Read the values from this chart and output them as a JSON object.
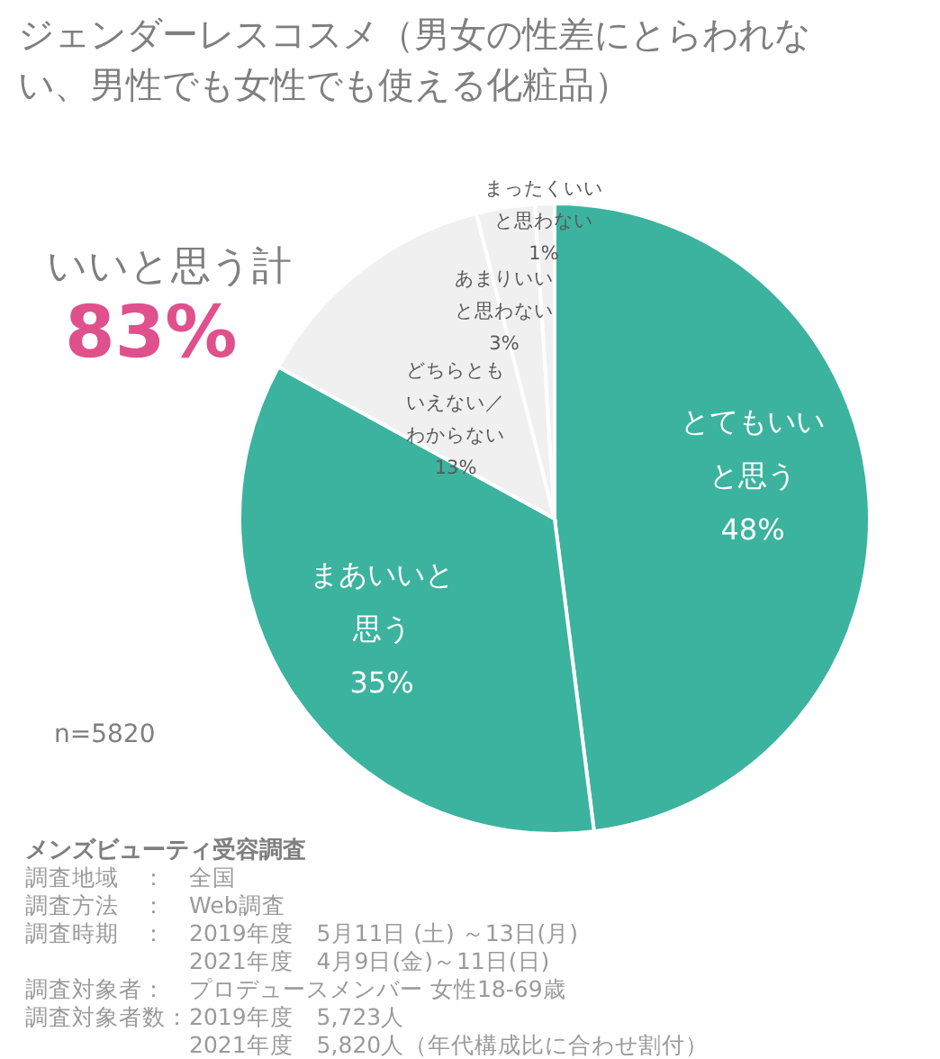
{
  "chart_data": {
    "type": "pie",
    "title": "ジェンダーレスコスメ（男女の性差にとらわれない、男性でも女性でも使える化粧品）",
    "categories": [
      "とてもいいと思う",
      "まあいいと思う",
      "どちらともいえない／わからない",
      "あまりいいと思わない",
      "まったくいいと思わない"
    ],
    "values": [
      48,
      35,
      13,
      3,
      1
    ],
    "value_labels": [
      "48%",
      "35%",
      "13%",
      "3%",
      "1%"
    ],
    "colors": [
      "#3bb39e",
      "#3bb39e",
      "#f0f0f0",
      "#f0f0f0",
      "#f0f0f0"
    ],
    "annotations": [
      "いいと思う計",
      "83%",
      "n=5820",
      "メンズビューティ受容調査",
      "調査地域　：　全国",
      "調査方法　：　Web調査",
      "調査時期　：　2019年度　5月11日 (土) ～13日(月)",
      "　　　　　　　2021年度　4月9日(金)～11日(日)",
      "調査対象者：　プロデュースメンバー 女性18-69歳",
      "調査対象者数：2019年度　5,723人",
      "　　　　　　　2021年度　5,820人（年代構成比に合わせ割付）"
    ]
  }
}
